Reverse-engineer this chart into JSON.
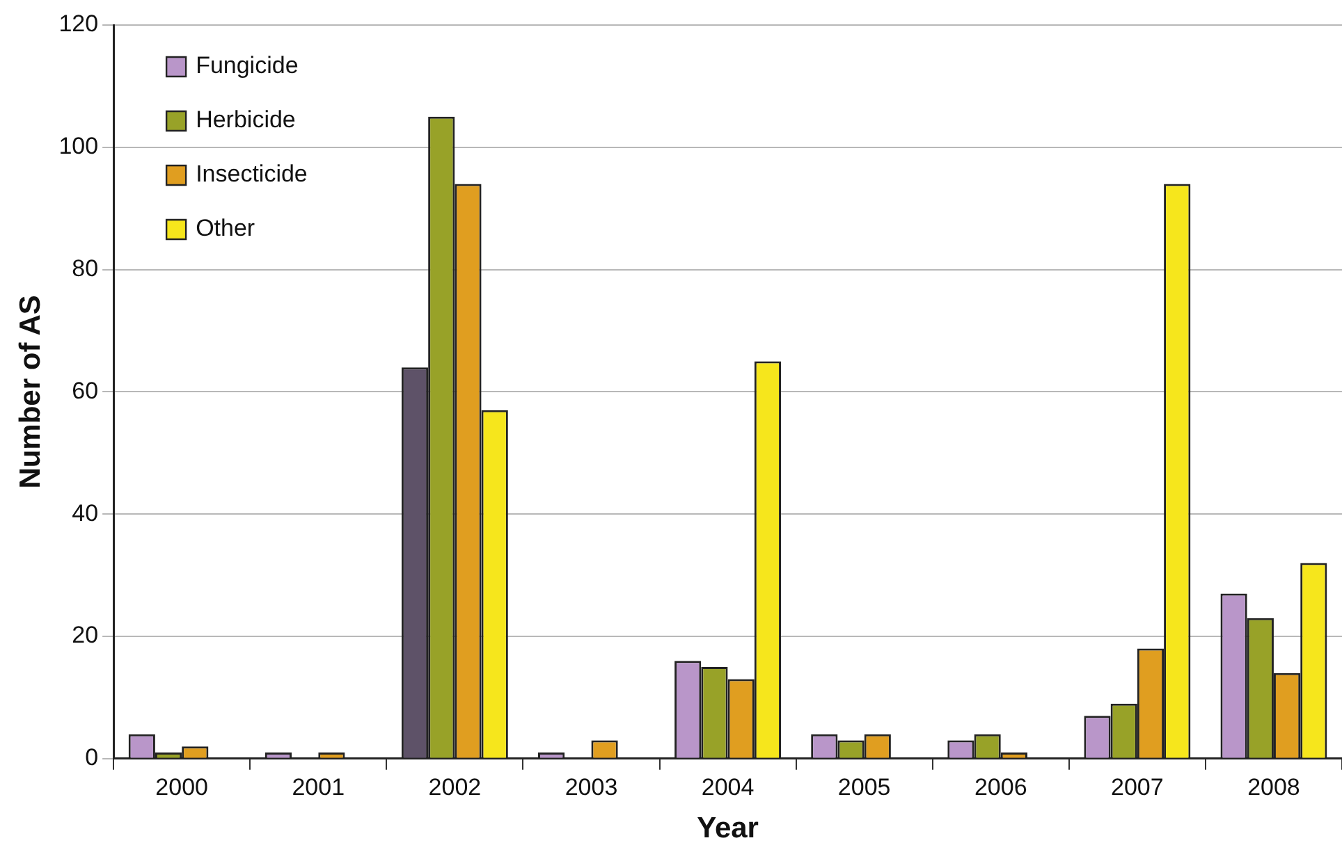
{
  "chart_data": {
    "type": "bar",
    "xlabel": "Year",
    "ylabel": "Number of AS",
    "categories": [
      "2000",
      "2001",
      "2002",
      "2003",
      "2004",
      "2005",
      "2006",
      "2007",
      "2008"
    ],
    "series": [
      {
        "name": "Fungicide",
        "color": "#b996c9",
        "colors": [
          "#b996c9",
          "#b996c9",
          "#5e5268",
          "#b996c9",
          "#b996c9",
          "#b996c9",
          "#b996c9",
          "#b996c9",
          "#b996c9"
        ],
        "values": [
          4,
          1,
          64,
          1,
          16,
          4,
          3,
          7,
          27
        ]
      },
      {
        "name": "Herbicide",
        "color": "#98a228",
        "values": [
          1,
          0,
          105,
          0,
          15,
          3,
          4,
          9,
          23
        ]
      },
      {
        "name": "Insecticide",
        "color": "#e09e20",
        "values": [
          2,
          1,
          94,
          3,
          13,
          4,
          1,
          18,
          14
        ]
      },
      {
        "name": "Other",
        "color": "#f6e61c",
        "values": [
          0,
          0,
          57,
          0,
          65,
          0,
          0,
          94,
          32
        ]
      }
    ],
    "ylim": [
      0,
      120
    ],
    "yticks": [
      0,
      20,
      40,
      60,
      80,
      100,
      120
    ],
    "grid": "y",
    "legend": "top left"
  }
}
